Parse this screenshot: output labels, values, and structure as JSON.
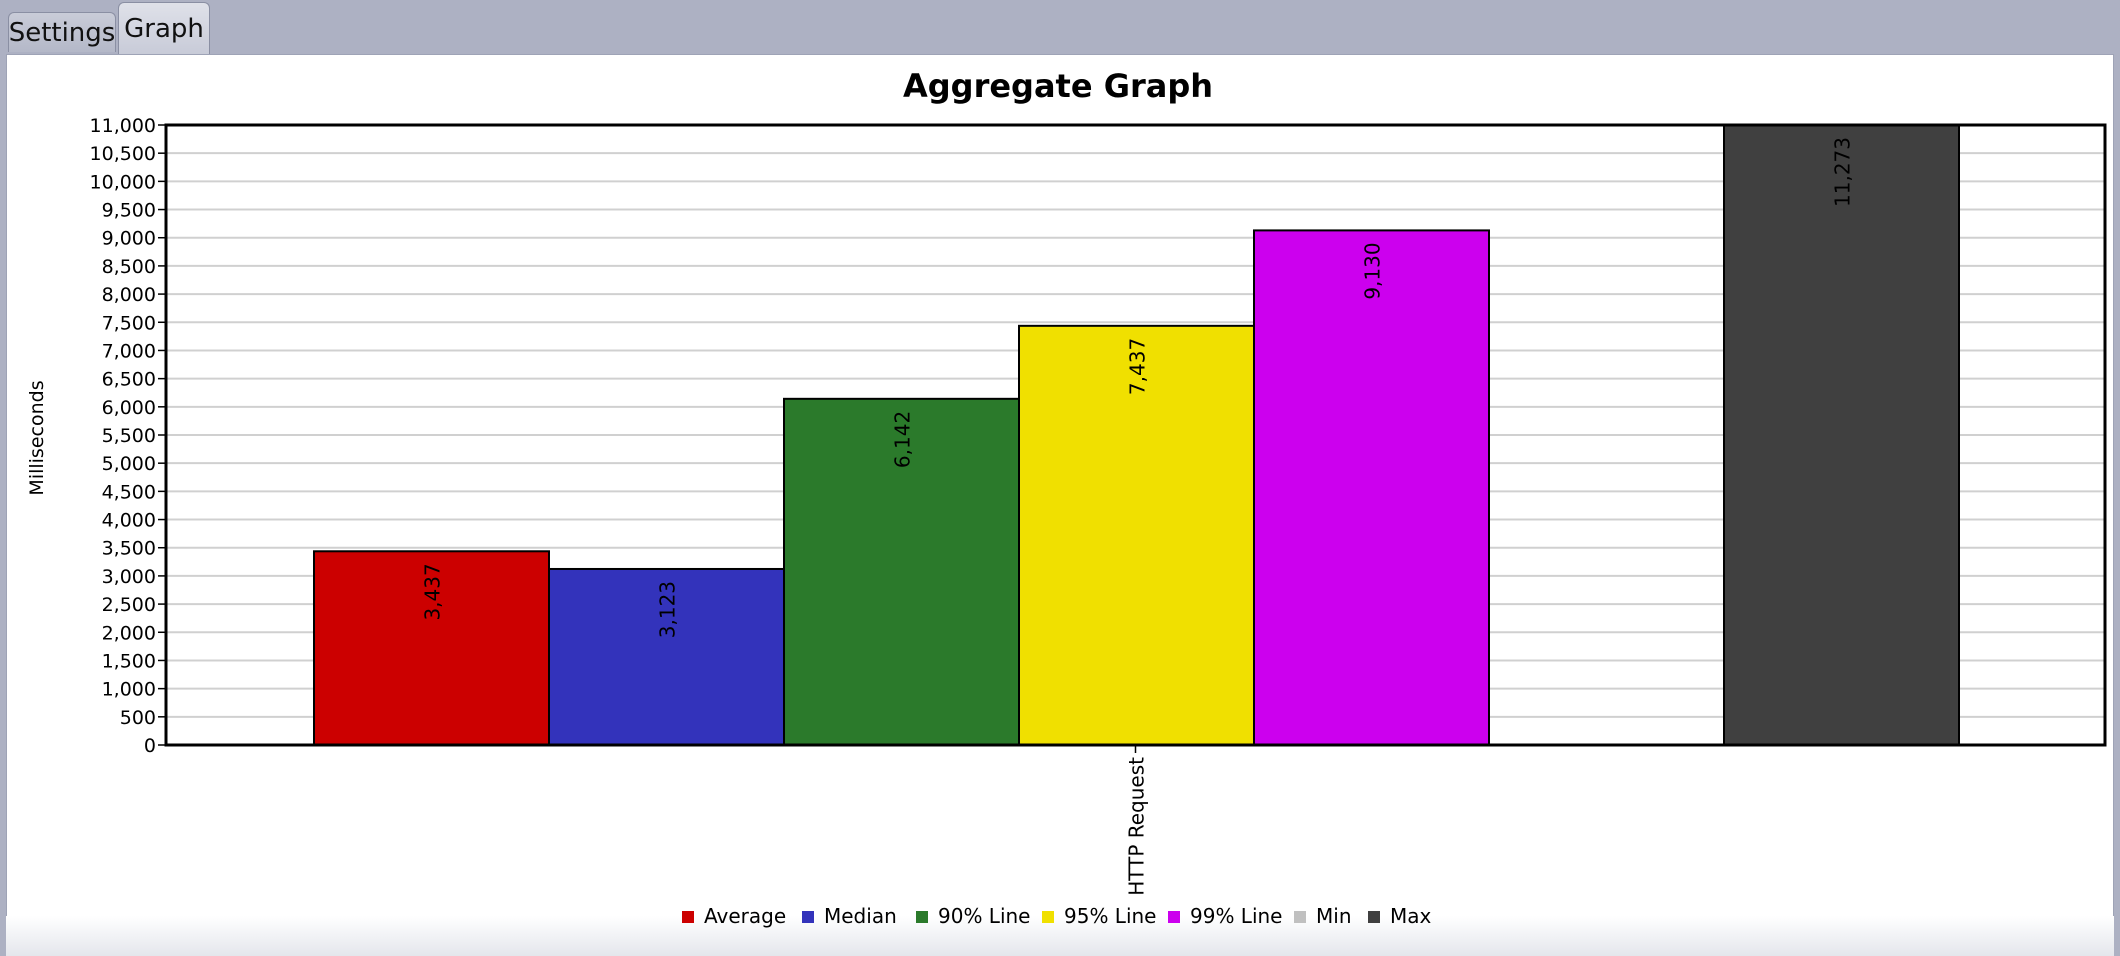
{
  "tabs": [
    {
      "label": "Settings",
      "active": false
    },
    {
      "label": "Graph",
      "active": true
    }
  ],
  "chart_data": {
    "type": "bar",
    "title": "Aggregate Graph",
    "ylabel": "Milliseconds",
    "xlabel": "",
    "categories": [
      "HTTP Request"
    ],
    "ylim": [
      0,
      11000
    ],
    "ytick_step": 500,
    "grid": true,
    "legend_position": "bottom",
    "series": [
      {
        "name": "Average",
        "values": [
          3437
        ],
        "color": "#cc0000",
        "label": "3,437"
      },
      {
        "name": "Median",
        "values": [
          3123
        ],
        "color": "#3333bb",
        "label": "3,123"
      },
      {
        "name": "90% Line",
        "values": [
          6142
        ],
        "color": "#2b7a2b",
        "label": "6,142"
      },
      {
        "name": "95% Line",
        "values": [
          7437
        ],
        "color": "#f0e000",
        "label": "7,437"
      },
      {
        "name": "99% Line",
        "values": [
          9130
        ],
        "color": "#cc00ee",
        "label": "9,130"
      },
      {
        "name": "Min",
        "values": [
          0
        ],
        "color": "#c0c0c0",
        "label": ""
      },
      {
        "name": "Max",
        "values": [
          11273
        ],
        "color": "#404040",
        "label": "11,273"
      }
    ]
  }
}
